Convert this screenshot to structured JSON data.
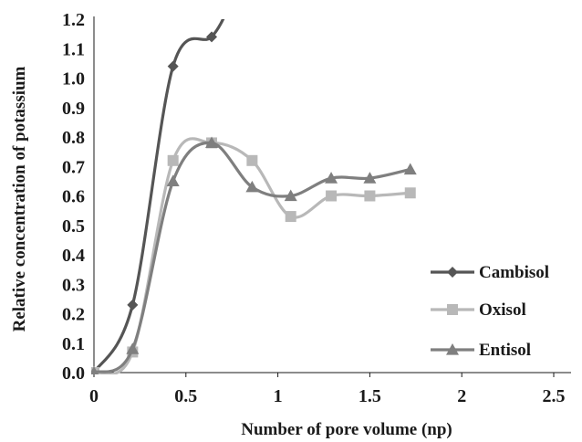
{
  "chart_data": {
    "type": "line",
    "title": "",
    "xlabel": "Number of pore volume (np)",
    "ylabel": "Relative concentration of potassium",
    "xlim": [
      0,
      2.5
    ],
    "ylim": [
      0,
      1.2
    ],
    "xticks": [
      "0",
      "0.5",
      "1",
      "1.5",
      "2",
      "2.5"
    ],
    "yticks": [
      "0.0",
      "0.1",
      "0.2",
      "0.3",
      "0.4",
      "0.5",
      "0.6",
      "0.7",
      "0.8",
      "0.9",
      "1.0",
      "1.1",
      "1.2"
    ],
    "grid": false,
    "smooth": true,
    "legend_position": "right",
    "series": [
      {
        "name": "Cambisol",
        "marker": "diamond",
        "color": "#555555",
        "x": [
          0,
          0.21,
          0.43,
          0.64,
          0.74
        ],
        "y": [
          0,
          0.23,
          1.04,
          1.14,
          1.25
        ]
      },
      {
        "name": "Oxisol",
        "marker": "square",
        "color": "#b8b8b8",
        "x": [
          0,
          0.21,
          0.43,
          0.64,
          0.86,
          1.07,
          1.29,
          1.5,
          1.72
        ],
        "y": [
          0,
          0.07,
          0.72,
          0.78,
          0.72,
          0.53,
          0.6,
          0.6,
          0.61
        ]
      },
      {
        "name": "Entisol",
        "marker": "triangle",
        "color": "#7f7f7f",
        "x": [
          0,
          0.21,
          0.43,
          0.64,
          0.86,
          1.07,
          1.29,
          1.5,
          1.72
        ],
        "y": [
          0,
          0.08,
          0.65,
          0.78,
          0.63,
          0.6,
          0.66,
          0.66,
          0.69
        ]
      }
    ]
  }
}
